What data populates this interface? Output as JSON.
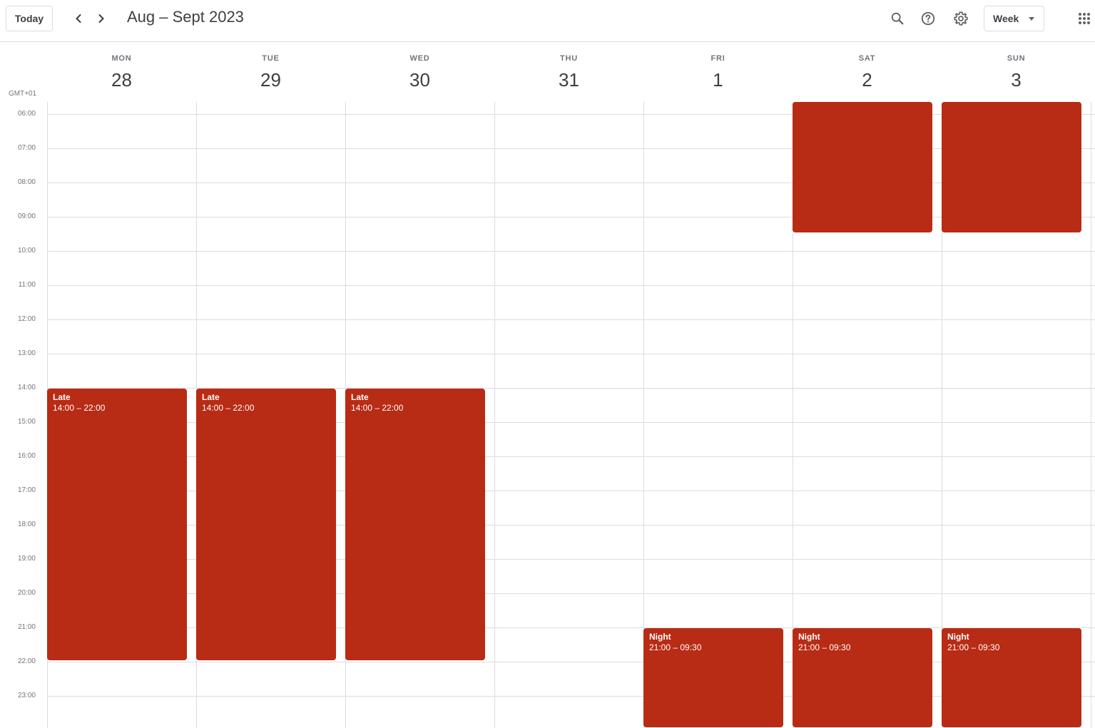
{
  "toolbar": {
    "today_label": "Today",
    "date_range": "Aug – Sept 2023",
    "view_label": "Week"
  },
  "timezone": "GMT+01",
  "days": [
    {
      "name": "MON",
      "num": "28"
    },
    {
      "name": "TUE",
      "num": "29"
    },
    {
      "name": "WED",
      "num": "30"
    },
    {
      "name": "THU",
      "num": "31"
    },
    {
      "name": "FRI",
      "num": "1"
    },
    {
      "name": "SAT",
      "num": "2"
    },
    {
      "name": "SUN",
      "num": "3"
    }
  ],
  "hours": [
    "06:00",
    "07:00",
    "08:00",
    "09:00",
    "10:00",
    "11:00",
    "12:00",
    "13:00",
    "14:00",
    "15:00",
    "16:00",
    "17:00",
    "18:00",
    "19:00",
    "20:00",
    "21:00",
    "22:00",
    "23:00"
  ],
  "events": [
    {
      "day": 0,
      "title": "Late",
      "time": "14:00 – 22:00",
      "start": 14,
      "end": 22
    },
    {
      "day": 1,
      "title": "Late",
      "time": "14:00 – 22:00",
      "start": 14,
      "end": 22
    },
    {
      "day": 2,
      "title": "Late",
      "time": "14:00 – 22:00",
      "start": 14,
      "end": 22
    },
    {
      "day": 4,
      "title": "Night",
      "time": "21:00 – 09:30",
      "start": 21,
      "end": 24
    },
    {
      "day": 5,
      "title": "Night",
      "time": "21:00 – 09:30",
      "start": 21,
      "end": 24
    },
    {
      "day": 6,
      "title": "Night",
      "time": "21:00 – 09:30",
      "start": 21,
      "end": 24
    },
    {
      "day": 5,
      "title": "",
      "time": "",
      "start": 5.5,
      "end": 9.5
    },
    {
      "day": 6,
      "title": "",
      "time": "",
      "start": 5.5,
      "end": 9.5
    }
  ],
  "colors": {
    "event": "#b82b14",
    "grid_line": "#dadce0"
  },
  "icons": [
    "chevron-left-icon",
    "chevron-right-icon",
    "search-icon",
    "help-icon",
    "gear-icon",
    "caret-down-icon",
    "apps-grid-icon"
  ]
}
